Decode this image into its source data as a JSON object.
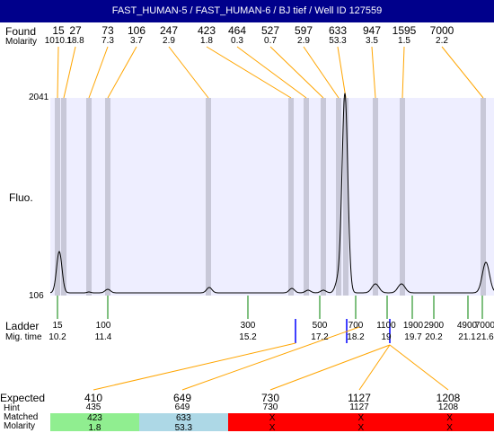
{
  "title": "FAST_HUMAN-5 / FAST_HUMAN-6 / BJ tief / Well ID 127559",
  "found_label": "Found",
  "molarity_label": "Molarity",
  "found_peaks": [
    {
      "size": "15",
      "molarity": "1010.1"
    },
    {
      "size": "27",
      "molarity": "18.8"
    },
    {
      "size": "73",
      "molarity": "7.3"
    },
    {
      "size": "106",
      "molarity": "3.7"
    },
    {
      "size": "247",
      "molarity": "2.9"
    },
    {
      "size": "423",
      "molarity": "1.8"
    },
    {
      "size": "464",
      "molarity": "0.3"
    },
    {
      "size": "527",
      "molarity": "0.7"
    },
    {
      "size": "597",
      "molarity": "2.9"
    },
    {
      "size": "633",
      "molarity": "53.3"
    },
    {
      "size": "947",
      "molarity": "3.5"
    },
    {
      "size": "1595",
      "molarity": "1.5"
    },
    {
      "size": "7000",
      "molarity": "2.2"
    }
  ],
  "fluo_label": "Fluo.",
  "y_max": "2041",
  "y_min": "106",
  "ladder_label": "Ladder",
  "migtime_label": "Mig. time",
  "ladder": [
    {
      "size": "15",
      "time": "10.2"
    },
    {
      "size": "100",
      "time": "11.4"
    },
    {
      "size": "300",
      "time": "15.2"
    },
    {
      "size": "500",
      "time": "17.2"
    },
    {
      "size": "700",
      "time": "18.2"
    },
    {
      "size": "1100",
      "time": "19"
    },
    {
      "size": "1900",
      "time": "19.7"
    },
    {
      "size": "2900",
      "time": "20.2"
    },
    {
      "size": "4900",
      "time": "21.1"
    },
    {
      "size": "7000",
      "time": "21.6"
    }
  ],
  "expected_label": "Expected",
  "hint_label": "Hint",
  "matched_label": "Matched",
  "molarity_row_label": "Molarity",
  "expected": [
    {
      "expected": "410",
      "hint": "435",
      "matched": "423",
      "molarity": "1.8",
      "color": "#90ee90"
    },
    {
      "expected": "649",
      "hint": "649",
      "matched": "633",
      "molarity": "53.3",
      "color": "#add8e6"
    },
    {
      "expected": "730",
      "hint": "730",
      "matched": "X",
      "molarity": "X",
      "color": "#ff0000"
    },
    {
      "expected": "1127",
      "hint": "1127",
      "matched": "X",
      "molarity": "X",
      "color": "#ff0000"
    },
    {
      "expected": "1208",
      "hint": "1208",
      "matched": "X",
      "molarity": "X",
      "color": "#ff0000"
    }
  ],
  "colors": {
    "title_bg": "#00008b",
    "plot_bg": "#eeeeff",
    "band": "#c8c8d8",
    "found_line": "#ffa500",
    "ladder_tick": "#008000",
    "blue_tick": "#0000ff",
    "trace": "#000000"
  }
}
